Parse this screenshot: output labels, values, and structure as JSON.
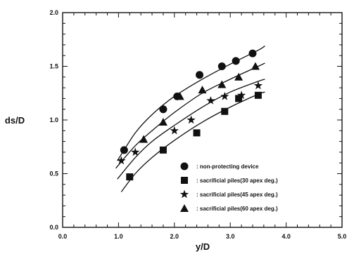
{
  "chart_data": {
    "type": "scatter",
    "xlabel": "y/D",
    "ylabel": "ds/D",
    "xlim": [
      0,
      5
    ],
    "ylim": [
      0,
      2
    ],
    "x_ticks": [
      "0.0",
      "1.0",
      "2.0",
      "3.0",
      "4.0",
      "5.0"
    ],
    "y_ticks": [
      "0.0",
      "0.5",
      "1.0",
      "1.5",
      "2.0"
    ],
    "grid": false,
    "legend_position": "lower-right",
    "series": [
      {
        "name": ": non-protecting device",
        "marker": "circle",
        "points": [
          [
            1.1,
            0.72
          ],
          [
            1.8,
            1.1
          ],
          [
            2.05,
            1.22
          ],
          [
            2.45,
            1.42
          ],
          [
            2.85,
            1.5
          ],
          [
            3.1,
            1.55
          ],
          [
            3.4,
            1.62
          ]
        ],
        "curve": [
          [
            0.98,
            0.62
          ],
          [
            1.3,
            0.88
          ],
          [
            1.6,
            1.05
          ],
          [
            2.0,
            1.22
          ],
          [
            2.5,
            1.38
          ],
          [
            3.0,
            1.52
          ],
          [
            3.5,
            1.65
          ],
          [
            3.62,
            1.69
          ]
        ]
      },
      {
        "name": ": sacrificial piles(30 apex deg.)",
        "marker": "square",
        "points": [
          [
            1.2,
            0.47
          ],
          [
            1.8,
            0.72
          ],
          [
            2.4,
            0.88
          ],
          [
            2.9,
            1.08
          ],
          [
            3.15,
            1.2
          ],
          [
            3.5,
            1.23
          ]
        ],
        "curve": [
          [
            1.05,
            0.33
          ],
          [
            1.3,
            0.5
          ],
          [
            1.6,
            0.65
          ],
          [
            2.0,
            0.81
          ],
          [
            2.5,
            0.98
          ],
          [
            3.0,
            1.12
          ],
          [
            3.5,
            1.24
          ],
          [
            3.62,
            1.26
          ]
        ]
      },
      {
        "name": ": sacrificial piles(45 apex deg.)",
        "marker": "star",
        "points": [
          [
            1.05,
            0.62
          ],
          [
            1.3,
            0.7
          ],
          [
            2.0,
            0.9
          ],
          [
            2.3,
            1.0
          ],
          [
            2.65,
            1.18
          ],
          [
            2.9,
            1.22
          ],
          [
            3.2,
            1.23
          ],
          [
            3.5,
            1.32
          ]
        ],
        "curve": [
          [
            0.98,
            0.45
          ],
          [
            1.3,
            0.65
          ],
          [
            1.6,
            0.8
          ],
          [
            2.0,
            0.95
          ],
          [
            2.5,
            1.12
          ],
          [
            3.0,
            1.26
          ],
          [
            3.5,
            1.36
          ],
          [
            3.62,
            1.38
          ]
        ]
      },
      {
        "name": ": sacrificial piles(60 apex deg.)",
        "marker": "triangle",
        "points": [
          [
            1.45,
            0.82
          ],
          [
            1.8,
            0.98
          ],
          [
            2.1,
            1.22
          ],
          [
            2.5,
            1.28
          ],
          [
            2.85,
            1.33
          ],
          [
            3.15,
            1.4
          ],
          [
            3.45,
            1.5
          ]
        ],
        "curve": [
          [
            0.95,
            0.55
          ],
          [
            1.3,
            0.76
          ],
          [
            1.6,
            0.9
          ],
          [
            2.0,
            1.07
          ],
          [
            2.5,
            1.25
          ],
          [
            3.0,
            1.38
          ],
          [
            3.5,
            1.5
          ],
          [
            3.62,
            1.53
          ]
        ]
      }
    ]
  }
}
